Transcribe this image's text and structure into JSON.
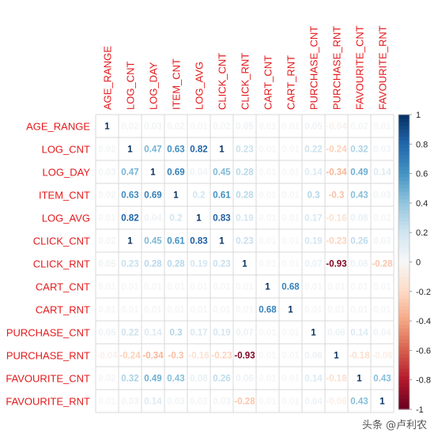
{
  "chart_data": {
    "type": "heatmap",
    "variables": [
      "AGE_RANGE",
      "LOG_CNT",
      "LOG_DAY",
      "ITEM_CNT",
      "LOG_AVG",
      "CLICK_CNT",
      "CLICK_RNT",
      "CART_CNT",
      "CART_RNT",
      "PURCHASE_CNT",
      "PURCHASE_RNT",
      "FAVOURITE_CNT",
      "FAVOURITE_RNT"
    ],
    "matrix": [
      [
        1,
        0.02,
        0.03,
        0.02,
        0.01,
        0.02,
        0.05,
        0.01,
        0.01,
        0.05,
        -0.04,
        0.02,
        0.01
      ],
      [
        0.02,
        1,
        0.47,
        0.63,
        0.82,
        1,
        0.23,
        0.01,
        0.01,
        0.22,
        -0.24,
        0.32,
        0.03
      ],
      [
        0.03,
        0.47,
        1,
        0.69,
        0.04,
        0.45,
        0.28,
        0.01,
        0.01,
        0.14,
        -0.34,
        0.49,
        0.14
      ],
      [
        0.02,
        0.63,
        0.69,
        1,
        0.2,
        0.61,
        0.28,
        0.01,
        0.01,
        0.3,
        -0.3,
        0.43,
        0.03
      ],
      [
        0.01,
        0.82,
        0.04,
        0.2,
        1,
        0.83,
        0.19,
        0.01,
        0.01,
        0.17,
        -0.16,
        0.08,
        0.02
      ],
      [
        0.02,
        1,
        0.45,
        0.61,
        0.83,
        1,
        0.23,
        0.01,
        0.01,
        0.19,
        -0.23,
        0.26,
        0.03
      ],
      [
        0.05,
        0.23,
        0.28,
        0.28,
        0.19,
        0.23,
        1,
        0.01,
        0.01,
        0.07,
        -0.93,
        0.06,
        -0.28
      ],
      [
        0.01,
        0.01,
        0.01,
        0.01,
        0.01,
        0.01,
        0.01,
        1,
        0.68,
        0.01,
        0.01,
        0.01,
        0.01
      ],
      [
        0.01,
        0.01,
        0.01,
        0.01,
        0.01,
        0.01,
        0.01,
        0.68,
        1,
        0.01,
        0.01,
        0.01,
        0.01
      ],
      [
        0.05,
        0.22,
        0.14,
        0.3,
        0.17,
        0.19,
        0.07,
        0.01,
        0.01,
        1,
        0.06,
        0.14,
        0.04
      ],
      [
        -0.04,
        -0.24,
        -0.34,
        -0.3,
        -0.16,
        -0.23,
        -0.93,
        0.01,
        0.01,
        0.06,
        1,
        -0.18,
        -0.06
      ],
      [
        0.02,
        0.32,
        0.49,
        0.43,
        0.08,
        0.26,
        0.06,
        0.01,
        0.01,
        0.14,
        -0.18,
        1,
        0.43
      ],
      [
        0.01,
        0.03,
        0.14,
        0.03,
        0.02,
        0.03,
        -0.28,
        0.01,
        0.01,
        0.04,
        -0.06,
        0.43,
        1
      ]
    ],
    "colorbar": {
      "range": [
        -1,
        1
      ],
      "ticks": [
        "1",
        "0.8",
        "0.6",
        "0.4",
        "0.2",
        "0",
        "-0.2",
        "-0.4",
        "-0.6",
        "-0.8",
        "-1"
      ]
    },
    "colors": {
      "negative": "#67001f",
      "neutral": "#f7f7f7",
      "positive": "#053061",
      "label": "#e41a1c",
      "grid": "#d9d9d9"
    }
  },
  "watermark": "头条 @卢利农"
}
